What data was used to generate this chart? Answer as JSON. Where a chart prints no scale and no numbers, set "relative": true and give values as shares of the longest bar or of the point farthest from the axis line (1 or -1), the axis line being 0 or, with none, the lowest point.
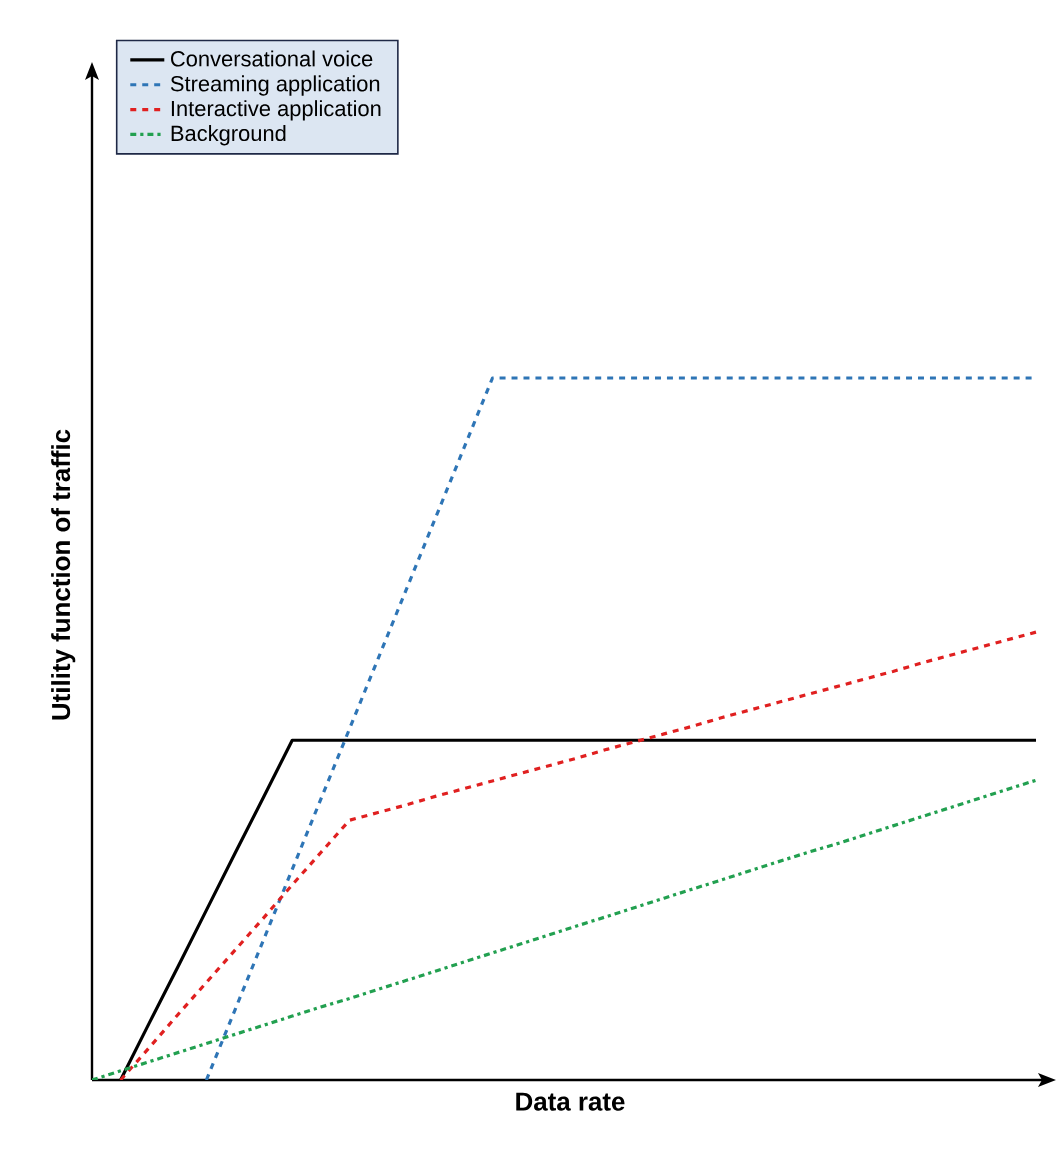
{
  "chart_data": {
    "type": "line",
    "relative": true,
    "xlabel": "Data rate",
    "ylabel": "Utility function of traffic",
    "legend": "top left",
    "categories": [
      null,
      null,
      null,
      null,
      null,
      null,
      null,
      null,
      null,
      null,
      null,
      null,
      null,
      null,
      null,
      null,
      null,
      null,
      null,
      null,
      null,
      null,
      null,
      null,
      null,
      null,
      null,
      null,
      null,
      null,
      null,
      null,
      null,
      null
    ],
    "series": [
      {
        "name": "Conversational voice",
        "color": "#000000",
        "line_style": "solid",
        "values": [
          null,
          0,
          0.081,
          0.161,
          0.242,
          0.323,
          0.403,
          0.484,
          0.484,
          0.484,
          0.484,
          0.484,
          0.484,
          0.484,
          0.484,
          0.484,
          0.484,
          0.484,
          0.484,
          0.484,
          0.484,
          0.484,
          0.484,
          0.484,
          0.484,
          0.484,
          0.484,
          0.484,
          0.484,
          0.484,
          0.484,
          0.484,
          0.484,
          0.484
        ]
      },
      {
        "name": "Streaming application",
        "color": "#2e75b6",
        "line_style": "dashed",
        "values": [
          null,
          null,
          null,
          null,
          0,
          0.1,
          0.2,
          0.3,
          0.4,
          0.5,
          0.6,
          0.7,
          0.8,
          0.9,
          1,
          1,
          1,
          1,
          1,
          1,
          1,
          1,
          1,
          1,
          1,
          1,
          1,
          1,
          1,
          1,
          1,
          1,
          1,
          1
        ]
      },
      {
        "name": "Interactive application",
        "color": "#e02020",
        "line_style": "dashed",
        "values": [
          null,
          0,
          0.046,
          0.093,
          0.139,
          0.185,
          0.231,
          0.278,
          0.324,
          0.37,
          0.381,
          0.392,
          0.404,
          0.415,
          0.426,
          0.437,
          0.448,
          0.459,
          0.471,
          0.482,
          0.493,
          0.504,
          0.516,
          0.527,
          0.538,
          0.549,
          0.56,
          0.571,
          0.582,
          0.594,
          0.605,
          0.616,
          0.627,
          0.638
        ]
      },
      {
        "name": "Background",
        "color": "#22a050",
        "line_style": "dashdot",
        "values": [
          0,
          0.013,
          0.026,
          0.039,
          0.052,
          0.065,
          0.078,
          0.091,
          0.104,
          0.116,
          0.129,
          0.142,
          0.155,
          0.168,
          0.181,
          0.194,
          0.207,
          0.22,
          0.233,
          0.246,
          0.259,
          0.272,
          0.285,
          0.298,
          0.311,
          0.324,
          0.336,
          0.349,
          0.362,
          0.375,
          0.388,
          0.401,
          0.414,
          0.427
        ]
      }
    ]
  }
}
